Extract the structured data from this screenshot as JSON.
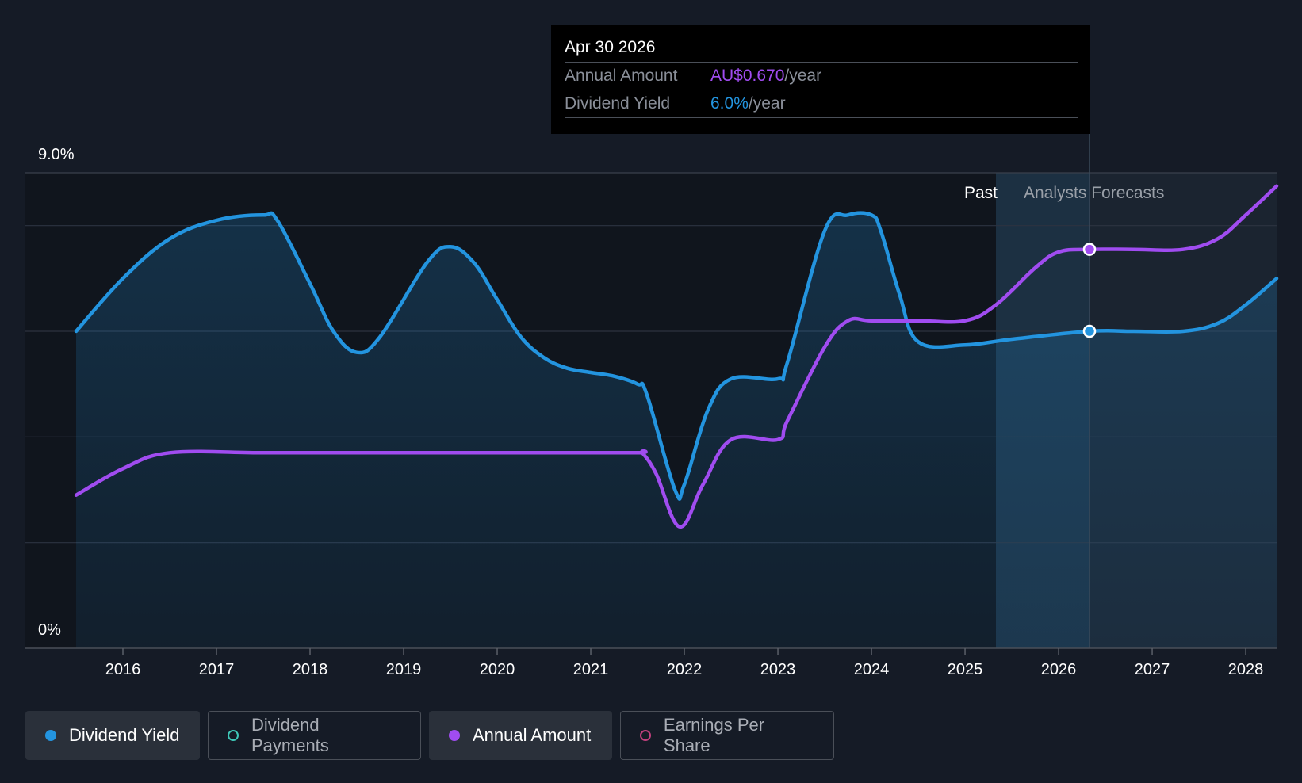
{
  "colors": {
    "background": "#151b26",
    "yield": "#2394df",
    "annual": "#a04cf0",
    "payments": "#3ec7b7",
    "eps": "#c2407e",
    "grid": "#2c3340"
  },
  "tooltip": {
    "date": "Apr 30 2026",
    "rows": [
      {
        "label": "Annual Amount",
        "value": "AU$0.670",
        "unit": "/year"
      },
      {
        "label": "Dividend Yield",
        "value": "6.0%",
        "unit": "/year"
      }
    ]
  },
  "regions": {
    "past_label": "Past",
    "forecast_label": "Analysts Forecasts"
  },
  "legend": [
    {
      "label": "Dividend Yield",
      "active": true,
      "icon": "filled-dot-icon"
    },
    {
      "label": "Dividend Payments",
      "active": false,
      "icon": "hollow-dot-icon"
    },
    {
      "label": "Annual Amount",
      "active": true,
      "icon": "filled-dot-icon"
    },
    {
      "label": "Earnings Per Share",
      "active": false,
      "icon": "hollow-dot-icon"
    }
  ],
  "chart_data": {
    "type": "line",
    "y_tick_labels": [
      "9.0%",
      "0%"
    ],
    "ylim": [
      0,
      9
    ],
    "x_tick_labels": [
      "2016",
      "2017",
      "2018",
      "2019",
      "2020",
      "2021",
      "2022",
      "2023",
      "2024",
      "2025",
      "2026",
      "2027",
      "2028"
    ],
    "x_ticks": [
      2016,
      2017,
      2018,
      2019,
      2020,
      2021,
      2022,
      2023,
      2024,
      2025,
      2026,
      2027,
      2028
    ],
    "xlim": [
      2015.5,
      2028.33
    ],
    "past_forecast_boundary": 2025.33,
    "highlight_x": 2026.33,
    "grid": true,
    "series": [
      {
        "name": "Dividend Yield",
        "area": true,
        "points": [
          [
            2015.5,
            6.0
          ],
          [
            2016.0,
            7.0
          ],
          [
            2016.5,
            7.75
          ],
          [
            2017.0,
            8.1
          ],
          [
            2017.5,
            8.2
          ],
          [
            2017.65,
            8.1
          ],
          [
            2018.0,
            6.9
          ],
          [
            2018.25,
            6.0
          ],
          [
            2018.5,
            5.6
          ],
          [
            2018.75,
            5.9
          ],
          [
            2019.25,
            7.3
          ],
          [
            2019.5,
            7.6
          ],
          [
            2019.75,
            7.3
          ],
          [
            2020.0,
            6.6
          ],
          [
            2020.25,
            5.9
          ],
          [
            2020.5,
            5.5
          ],
          [
            2020.75,
            5.3
          ],
          [
            2021.0,
            5.22
          ],
          [
            2021.25,
            5.15
          ],
          [
            2021.5,
            5.0
          ],
          [
            2021.6,
            4.8
          ],
          [
            2021.9,
            3.0
          ],
          [
            2022.0,
            3.1
          ],
          [
            2022.25,
            4.5
          ],
          [
            2022.5,
            5.1
          ],
          [
            2023.0,
            5.1
          ],
          [
            2023.1,
            5.4
          ],
          [
            2023.5,
            7.9
          ],
          [
            2023.75,
            8.2
          ],
          [
            2024.0,
            8.2
          ],
          [
            2024.1,
            7.9
          ],
          [
            2024.3,
            6.7
          ],
          [
            2024.5,
            5.8
          ],
          [
            2025.0,
            5.74
          ],
          [
            2025.5,
            5.85
          ],
          [
            2026.33,
            6.0
          ],
          [
            2026.8,
            6.0
          ],
          [
            2027.33,
            6.0
          ],
          [
            2027.7,
            6.15
          ],
          [
            2028.0,
            6.5
          ],
          [
            2028.33,
            7.0
          ]
        ]
      },
      {
        "name": "Annual Amount",
        "area": false,
        "points": [
          [
            2015.5,
            2.9
          ],
          [
            2016.0,
            3.4
          ],
          [
            2016.5,
            3.7
          ],
          [
            2017.5,
            3.7
          ],
          [
            2018.5,
            3.7
          ],
          [
            2019.5,
            3.7
          ],
          [
            2020.5,
            3.7
          ],
          [
            2021.5,
            3.7
          ],
          [
            2021.55,
            3.7
          ],
          [
            2021.7,
            3.3
          ],
          [
            2021.95,
            2.3
          ],
          [
            2022.2,
            3.1
          ],
          [
            2022.5,
            3.95
          ],
          [
            2023.0,
            3.95
          ],
          [
            2023.1,
            4.3
          ],
          [
            2023.5,
            5.7
          ],
          [
            2023.75,
            6.2
          ],
          [
            2024.0,
            6.2
          ],
          [
            2024.5,
            6.2
          ],
          [
            2025.0,
            6.2
          ],
          [
            2025.33,
            6.5
          ],
          [
            2025.75,
            7.2
          ],
          [
            2026.0,
            7.5
          ],
          [
            2026.33,
            7.55
          ],
          [
            2026.8,
            7.55
          ],
          [
            2027.33,
            7.55
          ],
          [
            2027.7,
            7.75
          ],
          [
            2028.0,
            8.2
          ],
          [
            2028.33,
            8.75
          ]
        ]
      }
    ]
  }
}
